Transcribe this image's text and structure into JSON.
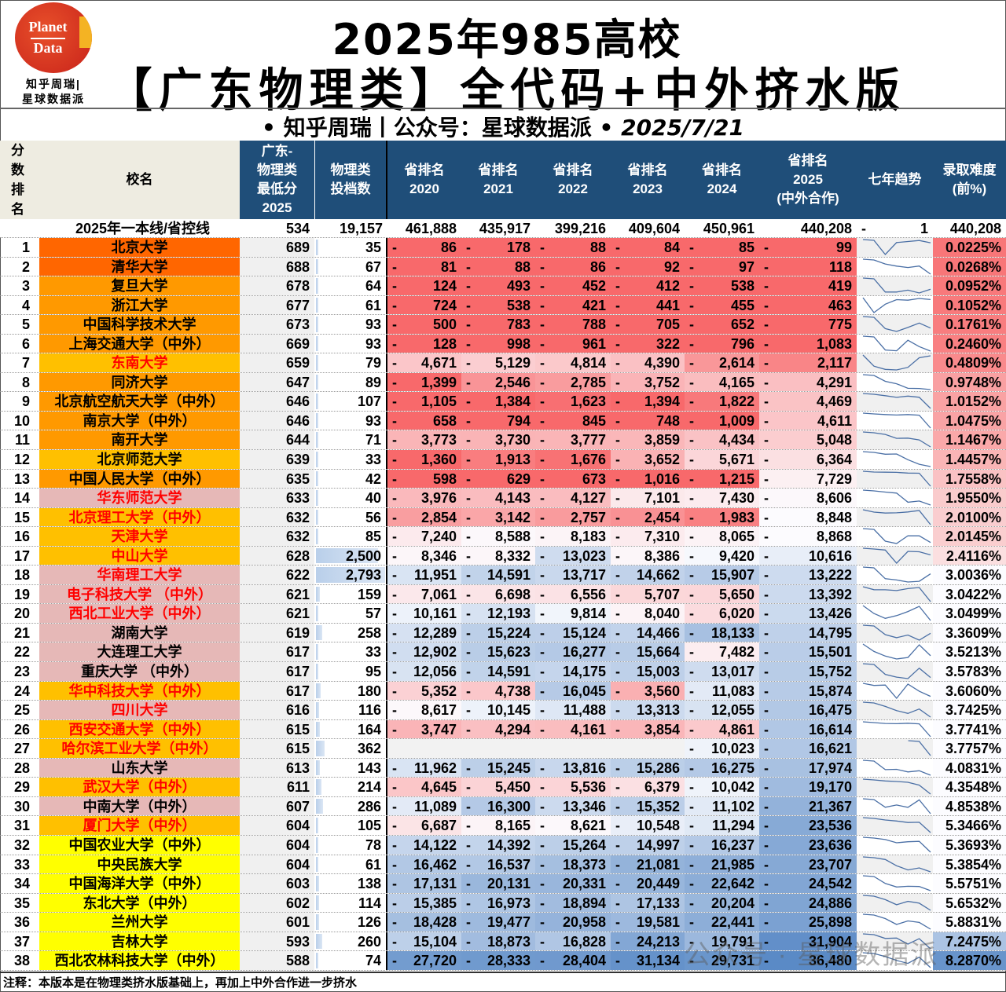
{
  "logo": {
    "line1": "Planet",
    "line2": "Data",
    "sub1": "知乎周瑞|",
    "sub2": "星球数据派"
  },
  "title": {
    "line1": "2025年985高校",
    "line2": "【广东物理类】全代码+中外挤水版"
  },
  "subtitle": {
    "authors": "• 知乎周瑞丨公众号：星球数据派 •",
    "date": "2025/7/21"
  },
  "headers": {
    "rank": "分\n数\n排\n名",
    "name": "校名",
    "score": "广东-\n物理类\n最低分\n2025",
    "count": "物理类\n投档数",
    "y2020": "省排名\n2020",
    "y2021": "省排名\n2021",
    "y2022": "省排名\n2022",
    "y2023": "省排名\n2023",
    "y2024": "省排名\n2024",
    "y2025": "省排名\n2025\n(中外合作)",
    "trend": "七年趋势",
    "pct": "录取难度\n(前%)"
  },
  "baseline": {
    "label": "2025年一本线/省控线",
    "score": "534",
    "count": "19,157",
    "ranks": [
      "461,888",
      "435,917",
      "399,216",
      "409,604",
      "450,961",
      "440,208"
    ],
    "trend": "1",
    "pct": "440,208"
  },
  "name_styles": {
    "o1": {
      "bg": "#ff6600"
    },
    "o2": {
      "bg": "#ff9900"
    },
    "g": {
      "bg": "#ffc000"
    },
    "p": {
      "bg": "#e6b8b7"
    },
    "y": {
      "bg": "#ffff00"
    }
  },
  "colors": {
    "header_bg": "#1f4e79",
    "rank_low": "#f8696b",
    "rank_high": "#5a8ac6",
    "red_text": "#ff0000"
  },
  "rows": [
    {
      "n": "1",
      "name": "北京大学",
      "score": "689",
      "count": "35",
      "ranks": [
        "86",
        "178",
        "88",
        "84",
        "85",
        "99"
      ],
      "pct": "0.0225%",
      "style": "o1",
      "red": false
    },
    {
      "n": "2",
      "name": "清华大学",
      "score": "688",
      "count": "67",
      "ranks": [
        "81",
        "88",
        "86",
        "92",
        "97",
        "118"
      ],
      "pct": "0.0268%",
      "style": "o1",
      "red": false
    },
    {
      "n": "3",
      "name": "复旦大学",
      "score": "678",
      "count": "64",
      "ranks": [
        "124",
        "493",
        "452",
        "412",
        "538",
        "419"
      ],
      "pct": "0.0952%",
      "style": "o2",
      "red": false
    },
    {
      "n": "4",
      "name": "浙江大学",
      "score": "677",
      "count": "61",
      "ranks": [
        "724",
        "538",
        "421",
        "441",
        "455",
        "463"
      ],
      "pct": "0.1052%",
      "style": "o2",
      "red": false
    },
    {
      "n": "5",
      "name": "中国科学技术大学",
      "score": "673",
      "count": "93",
      "ranks": [
        "500",
        "783",
        "788",
        "705",
        "652",
        "775"
      ],
      "pct": "0.1761%",
      "style": "o2",
      "red": false
    },
    {
      "n": "6",
      "name": "上海交通大学（中外）",
      "score": "669",
      "count": "93",
      "ranks": [
        "128",
        "998",
        "961",
        "322",
        "796",
        "1,083"
      ],
      "pct": "0.2460%",
      "style": "o2",
      "red": false
    },
    {
      "n": "7",
      "name": "东南大学",
      "score": "659",
      "count": "79",
      "ranks": [
        "4,671",
        "5,129",
        "4,814",
        "4,390",
        "2,614",
        "2,117"
      ],
      "pct": "0.4809%",
      "style": "g",
      "red": true
    },
    {
      "n": "8",
      "name": "同济大学",
      "score": "647",
      "count": "89",
      "ranks": [
        "1,399",
        "2,546",
        "2,785",
        "3,752",
        "4,165",
        "4,291"
      ],
      "pct": "0.9748%",
      "style": "o2",
      "red": false
    },
    {
      "n": "9",
      "name": "北京航空航天大学（中外）",
      "score": "646",
      "count": "107",
      "ranks": [
        "1,105",
        "1,384",
        "1,623",
        "1,394",
        "1,822",
        "4,469"
      ],
      "pct": "1.0152%",
      "style": "o2",
      "red": false
    },
    {
      "n": "10",
      "name": "南京大学（中外）",
      "score": "646",
      "count": "93",
      "ranks": [
        "658",
        "794",
        "845",
        "748",
        "1,009",
        "4,611"
      ],
      "pct": "1.0475%",
      "style": "o2",
      "red": false
    },
    {
      "n": "11",
      "name": "南开大学",
      "score": "644",
      "count": "71",
      "ranks": [
        "3,773",
        "3,730",
        "3,777",
        "3,859",
        "4,434",
        "5,048"
      ],
      "pct": "1.1467%",
      "style": "o2",
      "red": false
    },
    {
      "n": "12",
      "name": "北京师范大学",
      "score": "639",
      "count": "33",
      "ranks": [
        "1,360",
        "1,913",
        "1,676",
        "3,652",
        "5,671",
        "6,364"
      ],
      "pct": "1.4457%",
      "style": "g",
      "red": false
    },
    {
      "n": "13",
      "name": "中国人民大学（中外）",
      "score": "635",
      "count": "42",
      "ranks": [
        "598",
        "629",
        "673",
        "1,016",
        "1,215",
        "7,729"
      ],
      "pct": "1.7558%",
      "style": "o2",
      "red": false
    },
    {
      "n": "14",
      "name": "华东师范大学",
      "score": "633",
      "count": "40",
      "ranks": [
        "3,976",
        "4,143",
        "4,127",
        "7,101",
        "7,430",
        "8,606"
      ],
      "pct": "1.9550%",
      "style": "p",
      "red": true
    },
    {
      "n": "15",
      "name": "北京理工大学（中外）",
      "score": "632",
      "count": "56",
      "ranks": [
        "2,854",
        "3,142",
        "2,757",
        "2,454",
        "1,983",
        "8,848"
      ],
      "pct": "2.0100%",
      "style": "g",
      "red": true
    },
    {
      "n": "16",
      "name": "天津大学",
      "score": "632",
      "count": "85",
      "ranks": [
        "7,240",
        "8,588",
        "8,183",
        "7,310",
        "8,065",
        "8,868"
      ],
      "pct": "2.0145%",
      "style": "g",
      "red": true
    },
    {
      "n": "17",
      "name": "中山大学",
      "score": "628",
      "count": "2,500",
      "ranks": [
        "8,346",
        "8,332",
        "13,023",
        "8,386",
        "9,420",
        "10,616"
      ],
      "pct": "2.4116%",
      "style": "g",
      "red": true
    },
    {
      "n": "18",
      "name": "华南理工大学",
      "score": "622",
      "count": "2,793",
      "ranks": [
        "11,951",
        "14,591",
        "13,717",
        "14,662",
        "15,907",
        "13,222"
      ],
      "pct": "3.0036%",
      "style": "p",
      "red": true
    },
    {
      "n": "19",
      "name": "电子科技大学 （中外）",
      "score": "621",
      "count": "159",
      "ranks": [
        "7,061",
        "6,698",
        "6,556",
        "5,707",
        "5,650",
        "13,392"
      ],
      "pct": "3.0422%",
      "style": "p",
      "red": true
    },
    {
      "n": "20",
      "name": "西北工业大学（中外）",
      "score": "621",
      "count": "57",
      "ranks": [
        "10,161",
        "12,193",
        "9,814",
        "8,040",
        "6,020",
        "13,426"
      ],
      "pct": "3.0499%",
      "style": "p",
      "red": true
    },
    {
      "n": "21",
      "name": "湖南大学",
      "score": "619",
      "count": "258",
      "ranks": [
        "12,289",
        "15,224",
        "15,124",
        "14,466",
        "18,133",
        "14,795"
      ],
      "pct": "3.3609%",
      "style": "p",
      "red": false
    },
    {
      "n": "22",
      "name": "大连理工大学",
      "score": "617",
      "count": "33",
      "ranks": [
        "12,902",
        "15,623",
        "16,277",
        "15,664",
        "7,482",
        "15,501"
      ],
      "pct": "3.5213%",
      "style": "p",
      "red": false
    },
    {
      "n": "23",
      "name": "重庆大学 （中外）",
      "score": "617",
      "count": "95",
      "ranks": [
        "12,056",
        "14,591",
        "14,175",
        "15,003",
        "13,017",
        "15,752"
      ],
      "pct": "3.5783%",
      "style": "p",
      "red": false
    },
    {
      "n": "24",
      "name": "华中科技大学（中外）",
      "score": "617",
      "count": "180",
      "ranks": [
        "5,352",
        "4,738",
        "16,045",
        "3,560",
        "11,083",
        "15,874"
      ],
      "pct": "3.6060%",
      "style": "g",
      "red": true
    },
    {
      "n": "25",
      "name": "四川大学",
      "score": "616",
      "count": "116",
      "ranks": [
        "8,617",
        "10,145",
        "11,488",
        "13,313",
        "12,055",
        "16,475"
      ],
      "pct": "3.7425%",
      "style": "p",
      "red": true
    },
    {
      "n": "26",
      "name": "西安交通大学（中外）",
      "score": "615",
      "count": "164",
      "ranks": [
        "3,747",
        "4,294",
        "4,161",
        "3,854",
        "4,861",
        "16,614"
      ],
      "pct": "3.7741%",
      "style": "g",
      "red": true
    },
    {
      "n": "27",
      "name": "哈尔滨工业大学（中外）",
      "score": "615",
      "count": "362",
      "ranks": [
        null,
        null,
        null,
        null,
        "10,023",
        "16,621"
      ],
      "pct": "3.7757%",
      "style": "g",
      "red": true
    },
    {
      "n": "28",
      "name": "山东大学",
      "score": "613",
      "count": "143",
      "ranks": [
        "11,962",
        "15,245",
        "13,816",
        "15,286",
        "16,275",
        "17,974"
      ],
      "pct": "4.0831%",
      "style": "p",
      "red": false
    },
    {
      "n": "29",
      "name": "武汉大学（中外）",
      "score": "611",
      "count": "214",
      "ranks": [
        "4,645",
        "5,450",
        "5,536",
        "6,379",
        "10,042",
        "19,170"
      ],
      "pct": "4.3548%",
      "style": "g",
      "red": true
    },
    {
      "n": "30",
      "name": "中南大学（中外）",
      "score": "607",
      "count": "286",
      "ranks": [
        "11,089",
        "16,300",
        "13,346",
        "15,352",
        "11,102",
        "21,367"
      ],
      "pct": "4.8538%",
      "style": "p",
      "red": false
    },
    {
      "n": "31",
      "name": "厦门大学（中外）",
      "score": "604",
      "count": "105",
      "ranks": [
        "6,687",
        "8,165",
        "8,621",
        "10,548",
        "11,294",
        "23,536"
      ],
      "pct": "5.3466%",
      "style": "g",
      "red": true
    },
    {
      "n": "32",
      "name": "中国农业大学（中外）",
      "score": "604",
      "count": "78",
      "ranks": [
        "14,122",
        "14,392",
        "15,264",
        "14,997",
        "16,237",
        "23,636"
      ],
      "pct": "5.3693%",
      "style": "y",
      "red": false
    },
    {
      "n": "33",
      "name": "中央民族大学",
      "score": "604",
      "count": "61",
      "ranks": [
        "16,462",
        "16,537",
        "18,373",
        "21,081",
        "21,985",
        "23,707"
      ],
      "pct": "5.3854%",
      "style": "y",
      "red": false
    },
    {
      "n": "34",
      "name": "中国海洋大学（中外）",
      "score": "603",
      "count": "138",
      "ranks": [
        "17,131",
        "20,131",
        "20,331",
        "20,449",
        "22,642",
        "24,542"
      ],
      "pct": "5.5751%",
      "style": "y",
      "red": false
    },
    {
      "n": "35",
      "name": "东北大学（中外）",
      "score": "602",
      "count": "114",
      "ranks": [
        "15,385",
        "16,973",
        "18,894",
        "17,133",
        "20,204",
        "24,886"
      ],
      "pct": "5.6532%",
      "style": "y",
      "red": false
    },
    {
      "n": "36",
      "name": "兰州大学",
      "score": "601",
      "count": "126",
      "ranks": [
        "18,428",
        "19,477",
        "20,958",
        "19,581",
        "22,441",
        "25,898"
      ],
      "pct": "5.8831%",
      "style": "y",
      "red": false
    },
    {
      "n": "37",
      "name": "吉林大学",
      "score": "593",
      "count": "260",
      "ranks": [
        "15,104",
        "18,873",
        "16,828",
        "24,213",
        "19,791",
        "31,904"
      ],
      "pct": "7.2475%",
      "style": "y",
      "red": false
    },
    {
      "n": "38",
      "name": "西北农林科技大学（中外）",
      "score": "588",
      "count": "74",
      "ranks": [
        "27,720",
        "28,333",
        "28,404",
        "31,134",
        "29,731",
        "36,480"
      ],
      "pct": "8.2870%",
      "style": "y",
      "red": false
    }
  ],
  "footnote": "注释：本版本是在物理类挤水版基础上，再加上中外合作进一步挤水",
  "watermark": "公众号 · 星球数据派"
}
